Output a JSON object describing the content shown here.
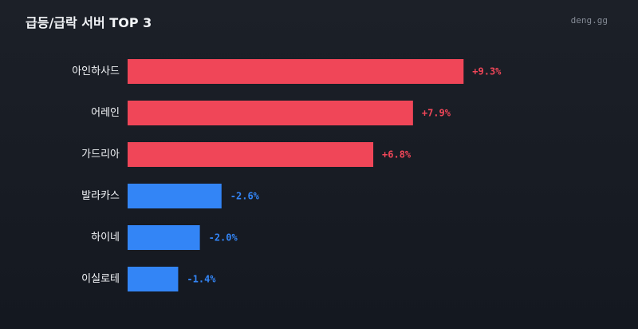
{
  "header": {
    "title": "급등/급락 서버 TOP 3",
    "brand": "deng.gg"
  },
  "colors": {
    "up": "#f04658",
    "down": "#3385f6",
    "label": "#f2f4f7"
  },
  "chart_data": {
    "type": "bar",
    "orientation": "horizontal",
    "title": "급등/급락 서버 TOP 3",
    "categories": [
      "아인하사드",
      "어레인",
      "가드리아",
      "발라카스",
      "하이네",
      "이실로테"
    ],
    "values": [
      9.3,
      7.9,
      6.8,
      -2.6,
      -2.0,
      -1.4
    ],
    "labels": [
      "+9.3%",
      "+7.9%",
      "+6.8%",
      "-2.6%",
      "-2.0%",
      "-1.4%"
    ],
    "unit": "%",
    "grid": false,
    "legend": "none"
  }
}
